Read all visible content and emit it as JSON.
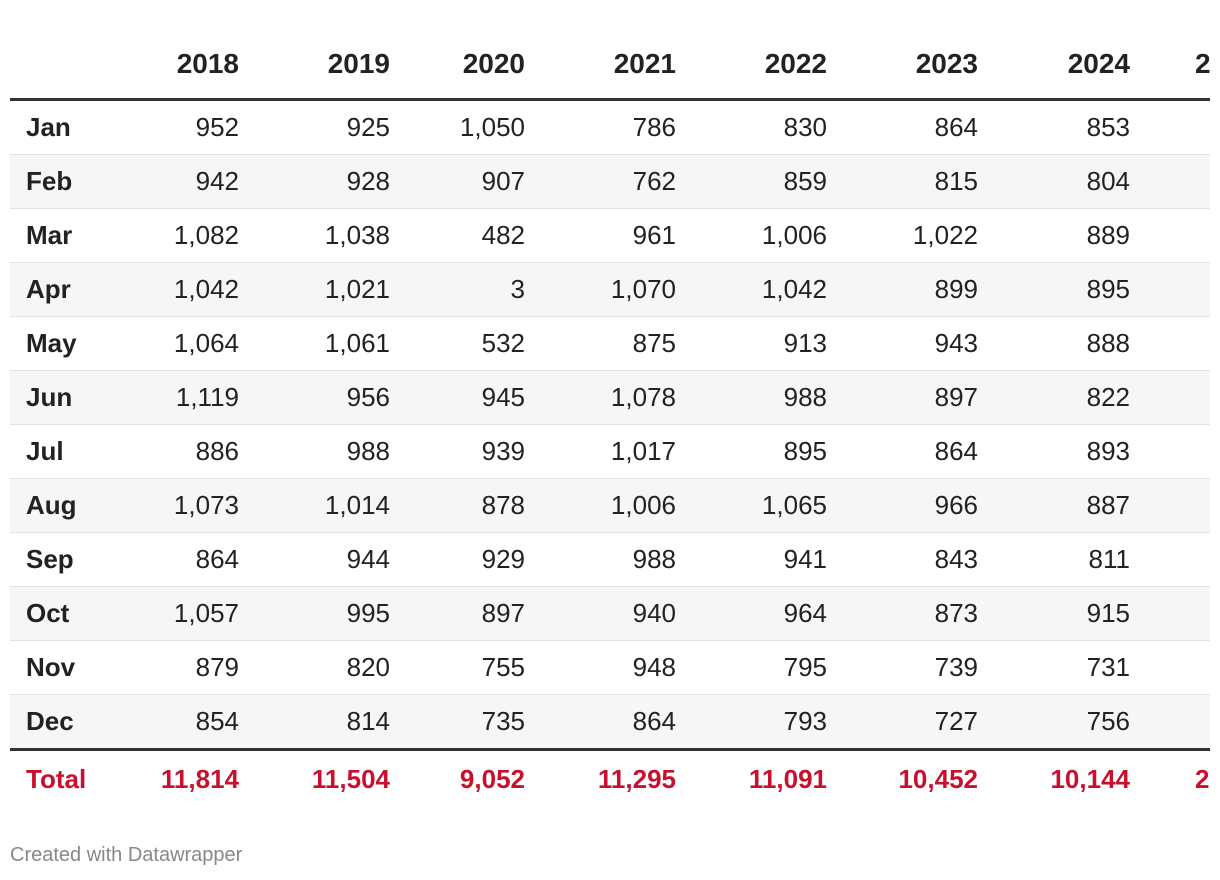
{
  "table": {
    "columns": [
      "2018",
      "2019",
      "2020",
      "2021",
      "2022",
      "2023",
      "2024",
      "2"
    ],
    "rows": [
      [
        "Jan",
        "952",
        "925",
        "1,050",
        "786",
        "830",
        "864",
        "853"
      ],
      [
        "Feb",
        "942",
        "928",
        "907",
        "762",
        "859",
        "815",
        "804"
      ],
      [
        "Mar",
        "1,082",
        "1,038",
        "482",
        "961",
        "1,006",
        "1,022",
        "889"
      ],
      [
        "Apr",
        "1,042",
        "1,021",
        "3",
        "1,070",
        "1,042",
        "899",
        "895"
      ],
      [
        "May",
        "1,064",
        "1,061",
        "532",
        "875",
        "913",
        "943",
        "888"
      ],
      [
        "Jun",
        "1,119",
        "956",
        "945",
        "1,078",
        "988",
        "897",
        "822"
      ],
      [
        "Jul",
        "886",
        "988",
        "939",
        "1,017",
        "895",
        "864",
        "893"
      ],
      [
        "Aug",
        "1,073",
        "1,014",
        "878",
        "1,006",
        "1,065",
        "966",
        "887"
      ],
      [
        "Sep",
        "864",
        "944",
        "929",
        "988",
        "941",
        "843",
        "811"
      ],
      [
        "Oct",
        "1,057",
        "995",
        "897",
        "940",
        "964",
        "873",
        "915"
      ],
      [
        "Nov",
        "879",
        "820",
        "755",
        "948",
        "795",
        "739",
        "731"
      ],
      [
        "Dec",
        "854",
        "814",
        "735",
        "864",
        "793",
        "727",
        "756"
      ]
    ],
    "total": [
      "Total",
      "11,814",
      "11,504",
      "9,052",
      "11,295",
      "11,091",
      "10,452",
      "10,144",
      "2"
    ]
  },
  "footer": "Created with Datawrapper"
}
